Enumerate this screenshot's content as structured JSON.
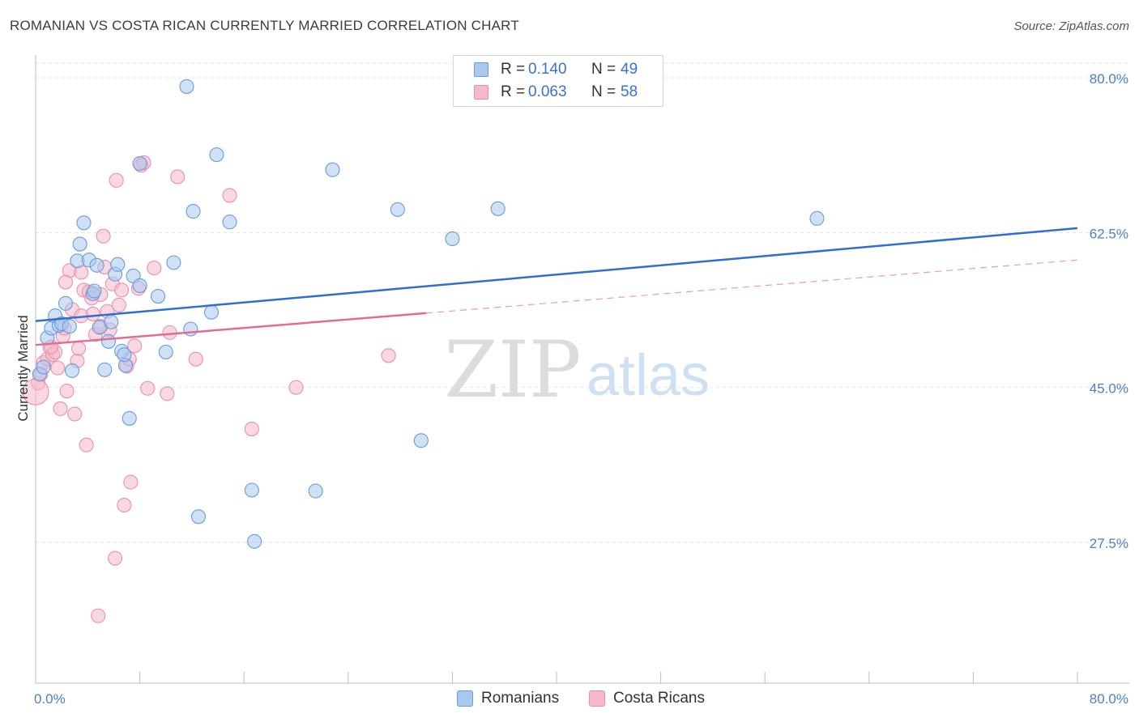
{
  "title": "ROMANIAN VS COSTA RICAN CURRENTLY MARRIED CORRELATION CHART",
  "source": "Source: ZipAtlas.com",
  "watermark": {
    "zip": "ZIP",
    "atlas": "atlas"
  },
  "legend_top": [
    {
      "r_label": "R =",
      "r_value": "0.140",
      "n_label": "N =",
      "n_value": "49"
    },
    {
      "r_label": "R =",
      "r_value": "0.063",
      "n_label": "N =",
      "n_value": "58"
    }
  ],
  "legend_bottom": [
    "Romanians",
    "Costa Ricans"
  ],
  "colors": {
    "blue_fill": "#a9c8ef",
    "blue_stroke": "#6a9bdc",
    "blue_line": "#2f6fcf",
    "pink_fill": "#f6b8cb",
    "pink_stroke": "#e990ad",
    "pink_line": "#e36c97",
    "tick_text": "#4a7fd0"
  },
  "chart_data": {
    "type": "scatter",
    "title": "ROMANIAN VS COSTA RICAN CURRENTLY MARRIED CORRELATION CHART",
    "xlabel": "",
    "ylabel": "Currently Married",
    "xlim": [
      0,
      80
    ],
    "ylim": [
      10,
      82
    ],
    "x_tick_labels": [
      "0.0%",
      "80.0%"
    ],
    "y_ticks": [
      27.5,
      45.0,
      62.5,
      80.0
    ],
    "y_tick_labels": [
      "27.5%",
      "45.0%",
      "62.5%",
      "80.0%"
    ],
    "grid": true,
    "legend": "top-center",
    "series": [
      {
        "name": "Romanians",
        "r": 0.14,
        "n": 49,
        "trend": {
          "x0": 0,
          "y0": 52.5,
          "x1": 80,
          "y1": 63.0,
          "dashed_from": null
        },
        "points": [
          [
            0.3,
            46.5
          ],
          [
            0.6,
            47.3
          ],
          [
            0.9,
            50.6
          ],
          [
            1.2,
            51.7
          ],
          [
            1.5,
            53.1
          ],
          [
            1.8,
            52.0
          ],
          [
            2.0,
            52.2
          ],
          [
            2.3,
            54.5
          ],
          [
            2.6,
            51.9
          ],
          [
            2.8,
            46.9
          ],
          [
            3.2,
            59.3
          ],
          [
            3.4,
            61.2
          ],
          [
            3.7,
            63.6
          ],
          [
            4.1,
            59.4
          ],
          [
            4.4,
            55.6
          ],
          [
            4.7,
            58.8
          ],
          [
            4.9,
            51.8
          ],
          [
            5.3,
            47.0
          ],
          [
            5.6,
            50.2
          ],
          [
            5.8,
            52.4
          ],
          [
            6.1,
            57.8
          ],
          [
            6.3,
            58.9
          ],
          [
            6.6,
            49.1
          ],
          [
            6.9,
            47.5
          ],
          [
            7.2,
            41.5
          ],
          [
            7.5,
            57.6
          ],
          [
            8.0,
            56.5
          ],
          [
            9.4,
            55.3
          ],
          [
            10.0,
            49.0
          ],
          [
            10.6,
            59.1
          ],
          [
            11.6,
            79.0
          ],
          [
            11.9,
            51.6
          ],
          [
            12.1,
            64.9
          ],
          [
            12.5,
            30.4
          ],
          [
            13.5,
            53.5
          ],
          [
            13.9,
            71.3
          ],
          [
            14.9,
            63.7
          ],
          [
            16.6,
            33.4
          ],
          [
            16.8,
            27.6
          ],
          [
            21.5,
            33.3
          ],
          [
            22.8,
            69.6
          ],
          [
            27.8,
            65.1
          ],
          [
            29.6,
            39.0
          ],
          [
            32.0,
            61.8
          ],
          [
            35.5,
            65.2
          ],
          [
            60.0,
            64.1
          ],
          [
            6.8,
            48.7
          ],
          [
            8.0,
            70.3
          ],
          [
            4.5,
            55.9
          ]
        ]
      },
      {
        "name": "Costa Ricans",
        "r": 0.063,
        "n": 58,
        "trend": {
          "x0": 0,
          "y0": 49.8,
          "x1": 80,
          "y1": 59.4,
          "dashed_from": 30
        },
        "points": [
          [
            0.2,
            45.5
          ],
          [
            0.4,
            46.5
          ],
          [
            0.6,
            47.8
          ],
          [
            0.9,
            48.2
          ],
          [
            1.1,
            49.5
          ],
          [
            1.3,
            48.7
          ],
          [
            1.5,
            49.0
          ],
          [
            1.7,
            47.2
          ],
          [
            1.9,
            42.6
          ],
          [
            2.1,
            50.8
          ],
          [
            2.2,
            51.7
          ],
          [
            2.4,
            44.6
          ],
          [
            2.6,
            58.2
          ],
          [
            2.8,
            53.8
          ],
          [
            3.0,
            42.0
          ],
          [
            3.2,
            48.0
          ],
          [
            3.3,
            49.4
          ],
          [
            3.5,
            58.0
          ],
          [
            3.7,
            56.0
          ],
          [
            3.9,
            38.5
          ],
          [
            4.1,
            55.8
          ],
          [
            4.3,
            55.1
          ],
          [
            4.4,
            53.3
          ],
          [
            4.6,
            51.0
          ],
          [
            4.8,
            19.2
          ],
          [
            5.0,
            55.5
          ],
          [
            5.2,
            62.1
          ],
          [
            5.3,
            58.6
          ],
          [
            5.5,
            53.6
          ],
          [
            5.7,
            51.5
          ],
          [
            5.9,
            56.7
          ],
          [
            6.1,
            25.7
          ],
          [
            6.2,
            68.4
          ],
          [
            6.4,
            54.3
          ],
          [
            6.6,
            56.0
          ],
          [
            6.8,
            31.7
          ],
          [
            7.0,
            47.4
          ],
          [
            7.2,
            48.2
          ],
          [
            7.3,
            34.3
          ],
          [
            7.6,
            49.7
          ],
          [
            7.9,
            56.2
          ],
          [
            8.1,
            70.1
          ],
          [
            8.3,
            70.4
          ],
          [
            8.6,
            44.9
          ],
          [
            9.1,
            58.5
          ],
          [
            10.1,
            44.3
          ],
          [
            10.3,
            51.2
          ],
          [
            10.9,
            68.8
          ],
          [
            12.3,
            48.2
          ],
          [
            14.9,
            66.7
          ],
          [
            16.6,
            40.3
          ],
          [
            20.0,
            45.0
          ],
          [
            27.1,
            48.6
          ],
          [
            2.3,
            56.9
          ],
          [
            3.5,
            53.1
          ],
          [
            1.2,
            49.6
          ],
          [
            5.0,
            51.9
          ],
          [
            0.0,
            44.5
          ]
        ]
      }
    ]
  }
}
